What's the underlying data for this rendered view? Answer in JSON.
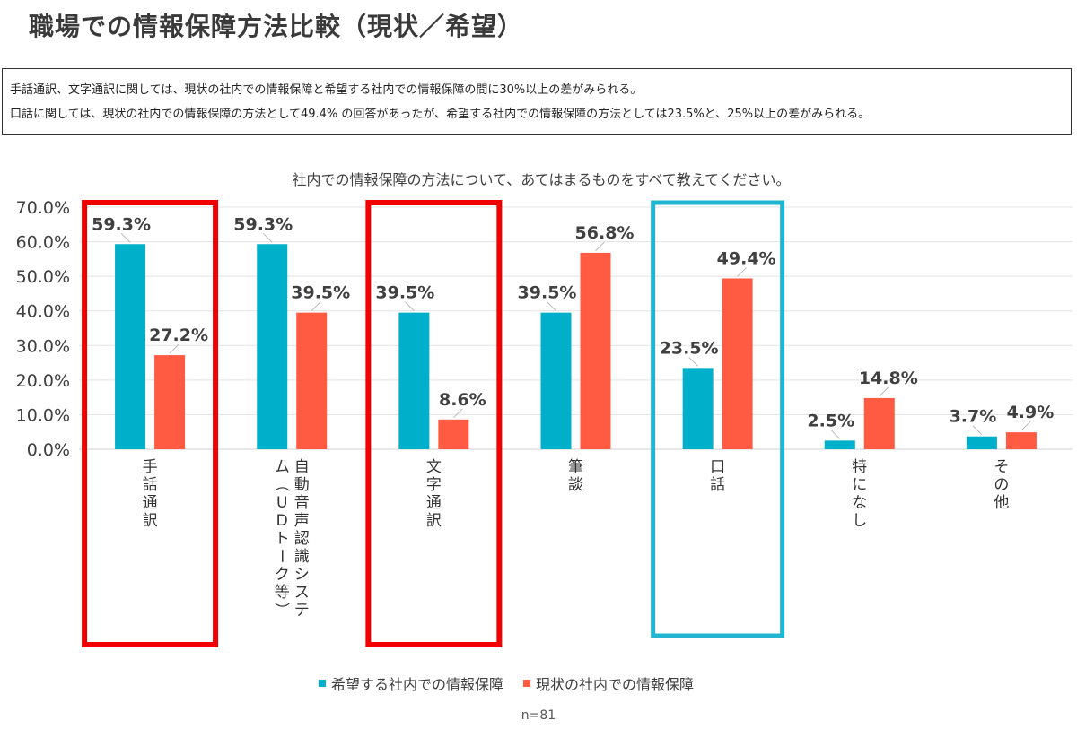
{
  "page": {
    "title": "職場での情報保障方法比較（現状／希望）",
    "summary_lines": [
      "手話通訳、文字通訳に関しては、現状の社内での情報保障と希望する社内での情報保障の間に30%以上の差がみられる。",
      "口話に関しては、現状の社内での情報保障の方法として49.4% の回答があったが、希望する社内での情報保障の方法としては23.5%と、25%以上の差がみられる。"
    ],
    "sample_note": "n=81"
  },
  "colors": {
    "series_wish": "#00B0CA",
    "series_current": "#FF5B42",
    "highlight_red": "#F20000",
    "highlight_blue": "#22B5CF"
  },
  "chart_data": {
    "type": "bar",
    "title": "社内での情報保障の方法について、あてはまるものをすべて教えてください。",
    "categories": [
      "手話通訳",
      "自動音声認識システム（UDトーク等）",
      "文字通訳",
      "筆談",
      "口話",
      "特になし",
      "その他"
    ],
    "series": [
      {
        "name": "希望する社内での情報保障",
        "values": [
          59.3,
          59.3,
          39.5,
          39.5,
          23.5,
          2.5,
          3.7
        ],
        "labels": [
          "59.3%",
          "59.3%",
          "39.5%",
          "39.5%",
          "23.5%",
          "2.5%",
          "3.7%"
        ]
      },
      {
        "name": "現状の社内での情報保障",
        "values": [
          27.2,
          39.5,
          8.6,
          56.8,
          49.4,
          14.8,
          4.9
        ],
        "labels": [
          "27.2%",
          "39.5%",
          "8.6%",
          "56.8%",
          "49.4%",
          "14.8%",
          "4.9%"
        ]
      }
    ],
    "ylim": [
      0,
      70
    ],
    "yticks": [
      "0.0%",
      "10.0%",
      "20.0%",
      "30.0%",
      "40.0%",
      "50.0%",
      "60.0%",
      "70.0%"
    ],
    "grid": true,
    "legend": "bottom",
    "highlights": [
      {
        "category": "手話通訳",
        "color": "red"
      },
      {
        "category": "文字通訳",
        "color": "red"
      },
      {
        "category": "口話",
        "color": "blue"
      }
    ]
  }
}
